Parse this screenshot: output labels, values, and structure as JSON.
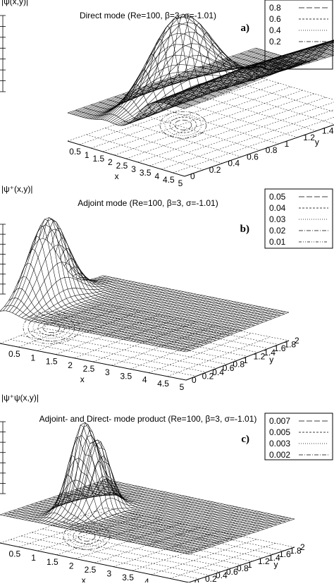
{
  "chart_data": [
    {
      "type": "surface",
      "panel": "a)",
      "title": "Direct mode (Re=100, β=3, σ=-1.01)",
      "zlabel": "|ψ(x,y)|",
      "xlabel": "x",
      "ylabel": "y",
      "x_ticks": [
        "0.5",
        "1",
        "1.5",
        "2",
        "2.5",
        "3",
        "3.5",
        "4",
        "4.5",
        "5"
      ],
      "y_ticks": [
        "0",
        "0.2",
        "0.4",
        "0.6",
        "0.8",
        "1",
        "1.2",
        "1.4",
        "1.6",
        "1.8",
        "2"
      ],
      "contour_levels": [
        "0.8",
        "0.6",
        "0.4",
        "0.2"
      ],
      "xlim": [
        0,
        5
      ],
      "ylim": [
        0,
        2
      ],
      "peak": {
        "x": 1.6,
        "y": 0.8,
        "z": 1.0
      },
      "plateau_from_x": 3.0
    },
    {
      "type": "surface",
      "panel": "b)",
      "title": "Adjoint mode (Re=100, β=3, σ=-1.01)",
      "zlabel": "|ψ⁺(x,y)|",
      "xlabel": "x",
      "ylabel": "y",
      "x_ticks": [
        "0.5",
        "1",
        "1.5",
        "2",
        "2.5",
        "3",
        "3.5",
        "4",
        "4.5",
        "5"
      ],
      "y_ticks": [
        "0",
        "0.2",
        "0.4",
        "0.6",
        "0.8",
        "1",
        "1.2",
        "1.4",
        "1.6",
        "1.8",
        "2"
      ],
      "contour_levels": [
        "0.05",
        "0.04",
        "0.03",
        "0.02",
        "0.01"
      ],
      "xlim": [
        0,
        5
      ],
      "ylim": [
        0,
        2
      ],
      "peak": {
        "x": 0.2,
        "y": 0.8,
        "z": 1.0
      }
    },
    {
      "type": "surface",
      "panel": "c)",
      "title": "Adjoint- and Direct- mode product (Re=100, β=3, σ=-1.01)",
      "zlabel": "|ψ⁺ψ(x,y)|",
      "xlabel": "x",
      "ylabel": "y",
      "x_ticks": [
        "0.5",
        "1",
        "1.5",
        "2",
        "2.5",
        "3",
        "3.5",
        "4",
        "4.5",
        "5"
      ],
      "y_ticks": [
        "0",
        "0.2",
        "0.4",
        "0.6",
        "0.8",
        "1",
        "1.2",
        "1.4",
        "1.6",
        "1.8",
        "2"
      ],
      "contour_levels": [
        "0.007",
        "0.005",
        "0.003",
        "0.002"
      ],
      "xlim": [
        0,
        5
      ],
      "ylim": [
        0,
        2
      ],
      "peaks": [
        {
          "x": 1.1,
          "y": 0.8,
          "z": 1.0
        },
        {
          "x": 1.5,
          "y": 0.8,
          "z": 0.7
        }
      ]
    }
  ]
}
